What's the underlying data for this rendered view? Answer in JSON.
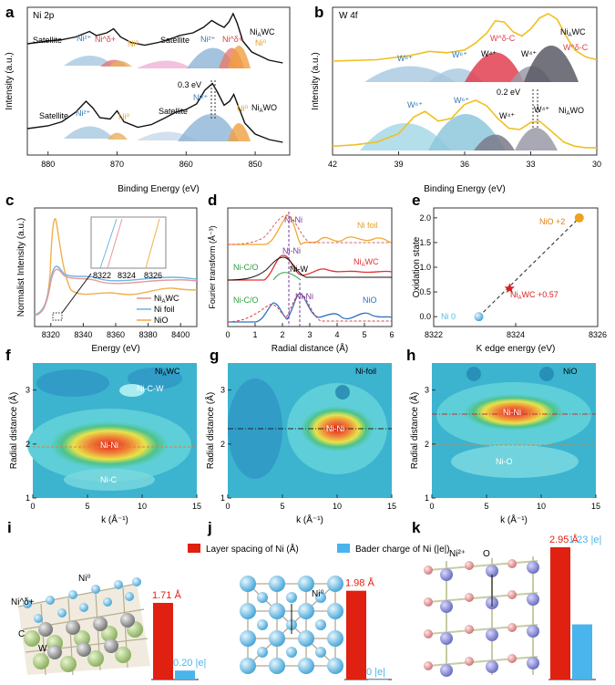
{
  "panel_letters": [
    "a",
    "b",
    "c",
    "d",
    "e",
    "f",
    "g",
    "h",
    "i",
    "j",
    "k"
  ],
  "chart_data": [
    {
      "id": "a",
      "type": "line",
      "title": "Ni 2p",
      "xlabel": "Binding Energy (eV)",
      "ylabel": "Intensity (a.u.)",
      "xlim": [
        883,
        845
      ],
      "xticks": [
        880,
        870,
        860,
        850
      ],
      "series": [
        {
          "name": "NiAWC",
          "label_main": "Ni",
          "label_sub": "A",
          "label_end": "WC",
          "x": [
            883,
            880,
            878,
            876,
            874,
            873,
            871.5,
            870.5,
            869.5,
            868,
            866,
            864,
            862,
            861,
            860,
            859,
            857.5,
            856.3,
            855.3,
            854.5,
            853.8,
            853.2,
            852.6,
            851.8,
            850.5,
            848,
            846
          ],
          "y": [
            0.78,
            0.8,
            0.81,
            0.83,
            0.87,
            0.84,
            0.86,
            0.89,
            0.83,
            0.79,
            0.77,
            0.79,
            0.82,
            0.84,
            0.85,
            0.86,
            0.9,
            0.95,
            0.92,
            0.9,
            0.94,
            1.0,
            0.93,
            0.8,
            0.72,
            0.66,
            0.64
          ]
        },
        {
          "name": "NiAWO",
          "label_main": "Ni",
          "label_sub": "A",
          "label_end": "WO",
          "x": [
            883,
            880,
            878,
            876,
            874.5,
            873.5,
            872.5,
            871,
            870,
            869,
            867,
            865,
            863,
            861.5,
            860,
            858.5,
            857.3,
            856.2,
            855.5,
            854.5,
            853.7,
            853.1,
            852.5,
            851.5,
            850,
            848,
            846
          ],
          "y": [
            0.16,
            0.18,
            0.21,
            0.28,
            0.36,
            0.31,
            0.24,
            0.23,
            0.29,
            0.21,
            0.17,
            0.19,
            0.24,
            0.28,
            0.3,
            0.34,
            0.44,
            0.49,
            0.43,
            0.33,
            0.36,
            0.41,
            0.33,
            0.2,
            0.12,
            0.08,
            0.06
          ]
        }
      ],
      "peak_labels": {
        "satellite": "Satellite",
        "ni2": "Ni²⁺",
        "ni_delta": "Ni^δ+",
        "ni0": "Ni⁰",
        "shift": "0.3 eV"
      }
    },
    {
      "id": "b",
      "type": "line",
      "title": "W 4f",
      "xlabel": "Binding Energy (eV)",
      "ylabel": "Intensity (a.u.)",
      "xlim": [
        42,
        30
      ],
      "xticks": [
        42,
        39,
        36,
        33,
        30
      ],
      "series": [
        {
          "name": "NiAWC",
          "x": [
            42,
            40,
            38.5,
            37.6,
            36.8,
            36,
            35.5,
            35,
            34.6,
            34.2,
            33.8,
            33.4,
            33,
            32.6,
            32.2,
            31.8,
            31.4,
            31,
            30.5,
            30
          ],
          "y": [
            0.66,
            0.67,
            0.7,
            0.73,
            0.72,
            0.74,
            0.79,
            0.86,
            0.95,
            0.94,
            0.87,
            0.84,
            0.89,
            0.97,
            1.0,
            0.96,
            0.84,
            0.74,
            0.69,
            0.67
          ]
        },
        {
          "name": "NiAWO",
          "x": [
            42,
            41,
            40,
            39,
            38.3,
            37.8,
            37.2,
            36.6,
            36,
            35.5,
            35,
            34.5,
            34,
            33.5,
            33,
            32.6,
            32,
            31.5,
            31,
            30.5,
            30
          ],
          "y": [
            0.05,
            0.06,
            0.08,
            0.14,
            0.26,
            0.3,
            0.23,
            0.25,
            0.35,
            0.38,
            0.34,
            0.25,
            0.18,
            0.17,
            0.22,
            0.23,
            0.15,
            0.08,
            0.05,
            0.04,
            0.04
          ]
        }
      ],
      "peak_labels": {
        "w6": "W⁶⁺",
        "w4": "W⁴⁺",
        "w_delta_c": "W^δ-C",
        "shift": "0.2 eV"
      }
    },
    {
      "id": "c",
      "type": "line",
      "xlabel": "Energy (eV)",
      "ylabel": "Normalist Intensity (a.u.)",
      "xlim": [
        8310,
        8410
      ],
      "xticks": [
        8320,
        8340,
        8360,
        8380,
        8400
      ],
      "inset_xticks": [
        8322,
        8324,
        8326
      ],
      "series": [
        {
          "name": "NiAWC",
          "color": "#e59a9a"
        },
        {
          "name": "Ni foil",
          "color": "#6fb7e0"
        },
        {
          "name": "NiO",
          "color": "#f0b050"
        }
      ],
      "legend": [
        "NiAWC",
        "Ni foil",
        "NiO"
      ]
    },
    {
      "id": "d",
      "type": "line",
      "xlabel": "Radial distance (Å)",
      "ylabel": "Fourier transform (Å⁻³)",
      "xlim": [
        0,
        6
      ],
      "xticks": [
        0,
        1,
        2,
        3,
        4,
        5,
        6
      ],
      "series": [
        {
          "name": "Ni foil",
          "color": "#f0a830"
        },
        {
          "name": "NiAWC",
          "color": "#e03030"
        },
        {
          "name": "NiO",
          "color": "#3070c0"
        }
      ],
      "annotations": [
        "Ni-Ni",
        "Ni-Ni",
        "Ni-W",
        "Ni-C/O",
        "Ni-C/O",
        "Ni-Ni"
      ]
    },
    {
      "id": "e",
      "type": "scatter",
      "xlabel": "K edge energy (eV)",
      "ylabel": "Oxidation state",
      "xlim": [
        8322,
        8326
      ],
      "ylim": [
        -0.2,
        2.2
      ],
      "xticks": [
        8322,
        8324,
        8326
      ],
      "yticks": [
        0.0,
        0.5,
        1.0,
        1.5,
        2.0
      ],
      "points": [
        {
          "name": "Ni 0",
          "x": 8323.1,
          "y": 0.0,
          "color": "#5ab7e8"
        },
        {
          "name": "NiAWC +0.57",
          "x": 8323.85,
          "y": 0.57,
          "color": "#d82020"
        },
        {
          "name": "NiO +2",
          "x": 8325.55,
          "y": 2.0,
          "color": "#f0a020"
        }
      ]
    },
    {
      "id": "f",
      "type": "heatmap",
      "title": "NiAWC",
      "xlabel": "k (Å⁻¹)",
      "ylabel": "Radial distance (Å)",
      "xlim": [
        0,
        15
      ],
      "ylim": [
        1,
        3.5
      ],
      "xticks": [
        0,
        5,
        10,
        15
      ],
      "yticks": [
        1,
        2,
        3
      ],
      "labels": [
        "Ni-C-W",
        "Ni-Ni",
        "Ni-C"
      ]
    },
    {
      "id": "g",
      "type": "heatmap",
      "title": "Ni-foil",
      "xlabel": "k (Å⁻¹)",
      "ylabel": "Radial distance (Å)",
      "xlim": [
        0,
        15
      ],
      "ylim": [
        1,
        3.5
      ],
      "xticks": [
        0,
        5,
        10,
        15
      ],
      "yticks": [
        1,
        2,
        3
      ],
      "labels": [
        "Ni-Ni"
      ]
    },
    {
      "id": "h",
      "type": "heatmap",
      "title": "NiO",
      "xlabel": "k (Å⁻¹)",
      "ylabel": "Radial distance (Å)",
      "xlim": [
        0,
        15
      ],
      "ylim": [
        1,
        3.5
      ],
      "xticks": [
        0,
        5,
        10,
        15
      ],
      "yticks": [
        1,
        2,
        3
      ],
      "labels": [
        "Ni-Ni",
        "Ni-O"
      ]
    },
    {
      "id": "ijk",
      "type": "bar",
      "legend": [
        {
          "name": "Layer spacing of Ni (Å)",
          "color": "#e02010"
        },
        {
          "name": "Bader charge of Ni (|e|)",
          "color": "#4ab4ec"
        }
      ],
      "groups": [
        {
          "panel": "i",
          "layer_spacing": 1.71,
          "layer_label": "1.71 Å",
          "bader": 0.2,
          "bader_label": "0.20 |e|",
          "atoms": [
            "Ni⁰",
            "Ni^δ+",
            "C",
            "W"
          ]
        },
        {
          "panel": "j",
          "layer_spacing": 1.98,
          "layer_label": "1.98 Å",
          "bader": 0.0,
          "bader_label": "0 |e|",
          "atoms": [
            "Ni⁰"
          ]
        },
        {
          "panel": "k",
          "layer_spacing": 2.95,
          "layer_label": "2.95 Å",
          "bader": 1.23,
          "bader_label": "1.23 |e|",
          "atoms": [
            "Ni²⁺",
            "O"
          ]
        }
      ]
    }
  ],
  "colors": {
    "red": "#e02010",
    "blue": "#4ab4ec",
    "gold": "#f0a020",
    "purple": "#8a3ab0",
    "gray": "#444444"
  }
}
